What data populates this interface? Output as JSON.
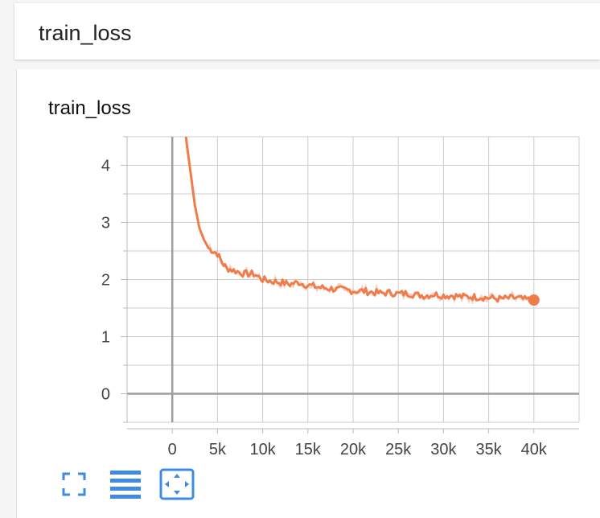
{
  "header": {
    "title": "train_loss"
  },
  "toolbar": {
    "buttons": [
      {
        "name": "fit-domain-button",
        "icon": "fullscreen-icon"
      },
      {
        "name": "toggle-log-scale-button",
        "icon": "lines-icon"
      },
      {
        "name": "zoom-fit-button",
        "icon": "fit-to-data-icon",
        "active": true
      }
    ]
  },
  "colors": {
    "series": "#f07c4c",
    "series_raw": "#f9c9b6",
    "accent": "#3d8be2",
    "grid": "#cccccc",
    "axis": "#9e9e9e"
  },
  "chart_data": {
    "type": "line",
    "title": "train_loss",
    "xlabel": "",
    "ylabel": "",
    "xlim": [
      -5000,
      45000
    ],
    "ylim": [
      -0.5,
      4.5
    ],
    "x_ticks": [
      0,
      5000,
      10000,
      15000,
      20000,
      25000,
      30000,
      35000,
      40000
    ],
    "x_tick_labels": [
      "0",
      "5k",
      "10k",
      "15k",
      "20k",
      "25k",
      "30k",
      "35k",
      "40k"
    ],
    "y_ticks": [
      0,
      1,
      2,
      3,
      4
    ],
    "y_tick_labels": [
      "0",
      "1",
      "2",
      "3",
      "4"
    ],
    "grid": true,
    "series": [
      {
        "x": [
          1500,
          2000,
          2500,
          3000,
          3500,
          4000,
          4500,
          5000,
          5500,
          6000,
          7000,
          8000,
          9000,
          10000,
          11000,
          12000,
          13000,
          14000,
          15000,
          16000,
          17000,
          18000,
          19000,
          20000,
          21000,
          22000,
          23000,
          24000,
          25000,
          26000,
          27000,
          28000,
          29000,
          30000,
          31000,
          32000,
          33000,
          34000,
          35000,
          36000,
          37000,
          38000,
          39000,
          40000
        ],
        "y": [
          4.5,
          3.9,
          3.3,
          2.9,
          2.7,
          2.55,
          2.5,
          2.45,
          2.3,
          2.2,
          2.15,
          2.1,
          2.1,
          2.0,
          1.97,
          1.95,
          1.92,
          1.95,
          1.9,
          1.87,
          1.85,
          1.83,
          1.82,
          1.8,
          1.8,
          1.78,
          1.76,
          1.77,
          1.75,
          1.76,
          1.73,
          1.72,
          1.74,
          1.72,
          1.72,
          1.7,
          1.7,
          1.69,
          1.68,
          1.66,
          1.67,
          1.68,
          1.65,
          1.64
        ]
      }
    ]
  }
}
